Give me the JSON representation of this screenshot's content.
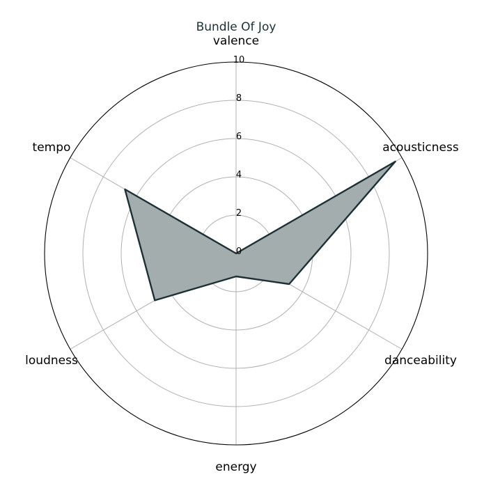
{
  "chart_data": {
    "type": "radar",
    "title": "Bundle Of Joy",
    "axes": [
      "valence",
      "acousticness",
      "danceability",
      "energy",
      "loudness",
      "tempo"
    ],
    "series": [
      {
        "values": [
          0.0,
          9.6,
          3.2,
          1.2,
          4.9,
          6.7
        ]
      }
    ],
    "rlim": [
      0,
      10
    ],
    "r_ticks": [
      "0",
      "2",
      "4",
      "6",
      "8",
      "10"
    ],
    "grid": true,
    "colors": {
      "line": "#1c3036",
      "fill": "#a4adad",
      "grid": "#b0b0b0",
      "frame": "#000000"
    }
  }
}
